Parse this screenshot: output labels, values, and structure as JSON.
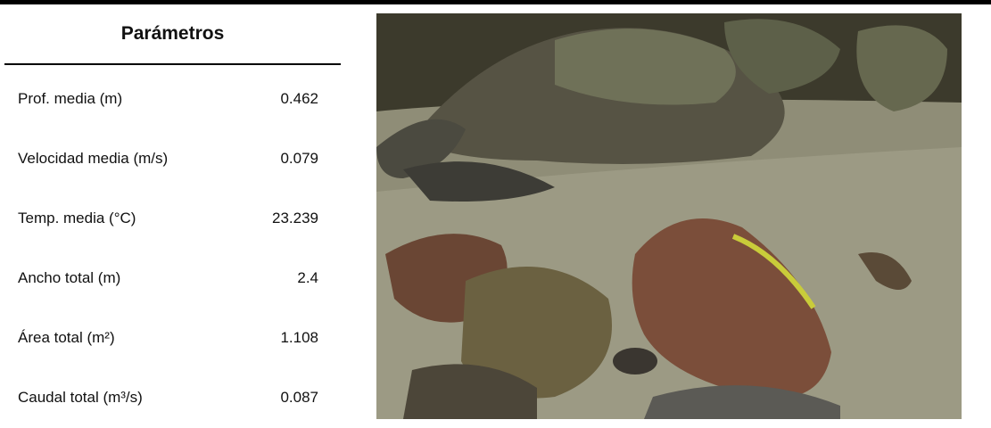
{
  "header": {
    "title": "Parámetros"
  },
  "table": {
    "rows": [
      [
        "Prof. media (m)",
        0.462
      ],
      [
        "Velocidad media (m/s)",
        0.079
      ],
      [
        "Temp. media (°C)",
        23.239
      ],
      [
        "Ancho total (m)",
        2.4
      ],
      [
        "Área total (m²)",
        1.108
      ],
      [
        "Caudal total (m³/s)",
        0.087
      ]
    ]
  }
}
